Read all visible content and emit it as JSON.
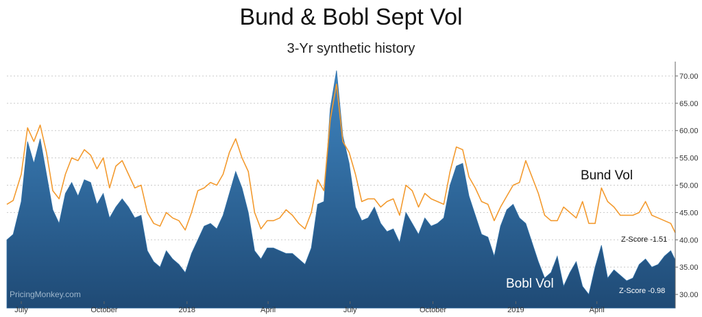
{
  "chart_data": {
    "type": "area",
    "title": "Bund & Bobl Sept Vol",
    "subtitle": "3-Yr synthetic history",
    "xlabel": "",
    "ylabel": "",
    "ylim": [
      29,
      72
    ],
    "yticks": [
      "30.00",
      "35.00",
      "40.00",
      "45.00",
      "50.00",
      "55.00",
      "60.00",
      "65.00",
      "70.00"
    ],
    "ytick_values": [
      30,
      35,
      40,
      45,
      50,
      55,
      60,
      65,
      70
    ],
    "y_axis_position": "right",
    "grid": true,
    "x_axis_labels": [
      "July",
      "October",
      "2018",
      "April",
      "July",
      "October",
      "2019",
      "April"
    ],
    "x_tick_dates": [
      "2017-07-01",
      "2017-10-01",
      "2018-01-01",
      "2018-04-01",
      "2018-07-01",
      "2018-10-01",
      "2019-01-01",
      "2019-04-01"
    ],
    "x_range": [
      "2017-06-15",
      "2019-06-27"
    ],
    "annotations": [
      {
        "text": "Bund Vol",
        "series": "bund"
      },
      {
        "text": "Bobl Vol",
        "series": "bobl"
      },
      {
        "text": "Z-Score -1.51",
        "series": "bund"
      },
      {
        "text": "Z-Score -0.98",
        "series": "bobl"
      }
    ],
    "watermark": "PricingMonkey.com",
    "colors": {
      "bund_line": "#f39a2e",
      "bobl_top": "#3f86c2",
      "bobl_bottom": "#1f4a75",
      "grid": "#c8c8c8"
    },
    "series": [
      {
        "name": "Bund Vol",
        "key": "bund",
        "style": "line",
        "x": [
          "2017-06-15",
          "2017-06-22",
          "2017-07-01",
          "2017-07-08",
          "2017-07-15",
          "2017-07-22",
          "2017-07-29",
          "2017-08-05",
          "2017-08-12",
          "2017-08-19",
          "2017-08-26",
          "2017-09-02",
          "2017-09-09",
          "2017-09-16",
          "2017-09-23",
          "2017-09-30",
          "2017-10-07",
          "2017-10-14",
          "2017-10-21",
          "2017-10-28",
          "2017-11-04",
          "2017-11-11",
          "2017-11-18",
          "2017-11-25",
          "2017-12-02",
          "2017-12-09",
          "2017-12-16",
          "2017-12-23",
          "2017-12-30",
          "2018-01-06",
          "2018-01-13",
          "2018-01-20",
          "2018-01-27",
          "2018-02-03",
          "2018-02-10",
          "2018-02-17",
          "2018-02-24",
          "2018-03-03",
          "2018-03-10",
          "2018-03-17",
          "2018-03-24",
          "2018-03-31",
          "2018-04-07",
          "2018-04-14",
          "2018-04-21",
          "2018-04-28",
          "2018-05-05",
          "2018-05-12",
          "2018-05-19",
          "2018-05-26",
          "2018-06-02",
          "2018-06-09",
          "2018-06-16",
          "2018-06-23",
          "2018-06-30",
          "2018-07-07",
          "2018-07-14",
          "2018-07-21",
          "2018-07-28",
          "2018-08-04",
          "2018-08-11",
          "2018-08-18",
          "2018-08-25",
          "2018-09-01",
          "2018-09-08",
          "2018-09-15",
          "2018-09-22",
          "2018-09-29",
          "2018-10-06",
          "2018-10-13",
          "2018-10-20",
          "2018-10-27",
          "2018-11-03",
          "2018-11-10",
          "2018-11-17",
          "2018-11-24",
          "2018-12-01",
          "2018-12-08",
          "2018-12-15",
          "2018-12-22",
          "2018-12-29",
          "2019-01-05",
          "2019-01-12",
          "2019-01-19",
          "2019-01-26",
          "2019-02-02",
          "2019-02-09",
          "2019-02-16",
          "2019-02-23",
          "2019-03-02",
          "2019-03-09",
          "2019-03-16",
          "2019-03-23",
          "2019-03-30",
          "2019-04-06",
          "2019-04-13",
          "2019-04-20",
          "2019-04-27",
          "2019-05-04",
          "2019-05-11",
          "2019-05-18",
          "2019-05-25",
          "2019-06-01",
          "2019-06-08",
          "2019-06-15",
          "2019-06-22",
          "2019-06-27"
        ],
        "values": [
          46.5,
          47.2,
          52.0,
          60.5,
          58.0,
          61.0,
          56.0,
          49.0,
          47.5,
          52.0,
          55.0,
          54.5,
          56.5,
          55.5,
          53.0,
          55.0,
          49.5,
          53.5,
          54.5,
          52.0,
          49.5,
          50.0,
          45.0,
          43.0,
          42.5,
          45.0,
          44.0,
          43.5,
          41.8,
          45.0,
          49.0,
          49.5,
          50.5,
          50.0,
          52.0,
          56.0,
          58.5,
          55.0,
          52.5,
          45.0,
          42.0,
          43.5,
          43.5,
          44.0,
          45.5,
          44.5,
          43.0,
          42.0,
          45.0,
          51.0,
          49.0,
          62.0,
          68.5,
          58.0,
          56.0,
          52.0,
          47.0,
          47.5,
          47.5,
          46.0,
          47.0,
          47.5,
          44.5,
          50.0,
          49.0,
          46.0,
          48.5,
          47.5,
          47.0,
          46.5,
          52.5,
          57.0,
          56.5,
          51.5,
          49.5,
          47.0,
          46.5,
          43.5,
          46.0,
          48.0,
          50.0,
          50.5,
          54.5,
          51.5,
          48.5,
          44.5,
          43.5,
          43.5,
          46.0,
          45.0,
          44.0,
          47.0,
          43.0,
          43.0,
          49.5,
          47.0,
          46.0,
          44.5,
          44.5,
          44.5,
          45.0,
          47.0,
          44.5,
          44.0,
          43.5,
          43.0,
          41.3
        ]
      },
      {
        "name": "Bobl Vol",
        "key": "bobl",
        "style": "area",
        "x": [
          "2017-06-15",
          "2017-06-22",
          "2017-07-01",
          "2017-07-08",
          "2017-07-15",
          "2017-07-22",
          "2017-07-29",
          "2017-08-05",
          "2017-08-12",
          "2017-08-19",
          "2017-08-26",
          "2017-09-02",
          "2017-09-09",
          "2017-09-16",
          "2017-09-23",
          "2017-09-30",
          "2017-10-07",
          "2017-10-14",
          "2017-10-21",
          "2017-10-28",
          "2017-11-04",
          "2017-11-11",
          "2017-11-18",
          "2017-11-25",
          "2017-12-02",
          "2017-12-09",
          "2017-12-16",
          "2017-12-23",
          "2017-12-30",
          "2018-01-06",
          "2018-01-13",
          "2018-01-20",
          "2018-01-27",
          "2018-02-03",
          "2018-02-10",
          "2018-02-17",
          "2018-02-24",
          "2018-03-03",
          "2018-03-10",
          "2018-03-17",
          "2018-03-24",
          "2018-03-31",
          "2018-04-07",
          "2018-04-14",
          "2018-04-21",
          "2018-04-28",
          "2018-05-05",
          "2018-05-12",
          "2018-05-19",
          "2018-05-26",
          "2018-06-02",
          "2018-06-09",
          "2018-06-16",
          "2018-06-23",
          "2018-06-30",
          "2018-07-07",
          "2018-07-14",
          "2018-07-21",
          "2018-07-28",
          "2018-08-04",
          "2018-08-11",
          "2018-08-18",
          "2018-08-25",
          "2018-09-01",
          "2018-09-08",
          "2018-09-15",
          "2018-09-22",
          "2018-09-29",
          "2018-10-06",
          "2018-10-13",
          "2018-10-20",
          "2018-10-27",
          "2018-11-03",
          "2018-11-10",
          "2018-11-17",
          "2018-11-24",
          "2018-12-01",
          "2018-12-08",
          "2018-12-15",
          "2018-12-22",
          "2018-12-29",
          "2019-01-05",
          "2019-01-12",
          "2019-01-19",
          "2019-01-26",
          "2019-02-02",
          "2019-02-09",
          "2019-02-16",
          "2019-02-23",
          "2019-03-02",
          "2019-03-09",
          "2019-03-16",
          "2019-03-23",
          "2019-03-30",
          "2019-04-06",
          "2019-04-13",
          "2019-04-20",
          "2019-04-27",
          "2019-05-04",
          "2019-05-11",
          "2019-05-18",
          "2019-05-25",
          "2019-06-01",
          "2019-06-08",
          "2019-06-15",
          "2019-06-22",
          "2019-06-27"
        ],
        "values": [
          40.0,
          41.0,
          47.0,
          58.0,
          54.0,
          58.5,
          52.0,
          45.5,
          43.0,
          48.5,
          50.5,
          48.0,
          51.0,
          50.5,
          46.5,
          48.5,
          44.0,
          46.0,
          47.5,
          46.0,
          44.0,
          44.5,
          38.0,
          36.0,
          35.0,
          38.0,
          36.5,
          35.5,
          34.0,
          37.5,
          40.0,
          42.5,
          43.0,
          42.0,
          44.5,
          48.5,
          52.5,
          49.5,
          45.0,
          38.0,
          36.5,
          38.5,
          38.5,
          38.0,
          37.5,
          37.5,
          36.5,
          35.5,
          38.5,
          46.5,
          47.0,
          64.0,
          71.0,
          59.0,
          54.0,
          46.0,
          43.5,
          44.0,
          46.0,
          43.0,
          41.5,
          42.0,
          39.5,
          45.0,
          43.0,
          41.0,
          44.0,
          42.5,
          43.0,
          44.0,
          50.0,
          53.5,
          54.0,
          48.0,
          44.5,
          41.0,
          40.5,
          37.0,
          42.5,
          45.5,
          46.5,
          44.0,
          43.0,
          39.5,
          36.0,
          33.0,
          34.0,
          37.0,
          31.5,
          34.0,
          36.0,
          31.5,
          30.0,
          35.0,
          39.0,
          33.0,
          34.5,
          33.5,
          32.5,
          33.0,
          35.5,
          36.5,
          35.0,
          35.5,
          37.0,
          38.0,
          36.3
        ]
      }
    ]
  }
}
